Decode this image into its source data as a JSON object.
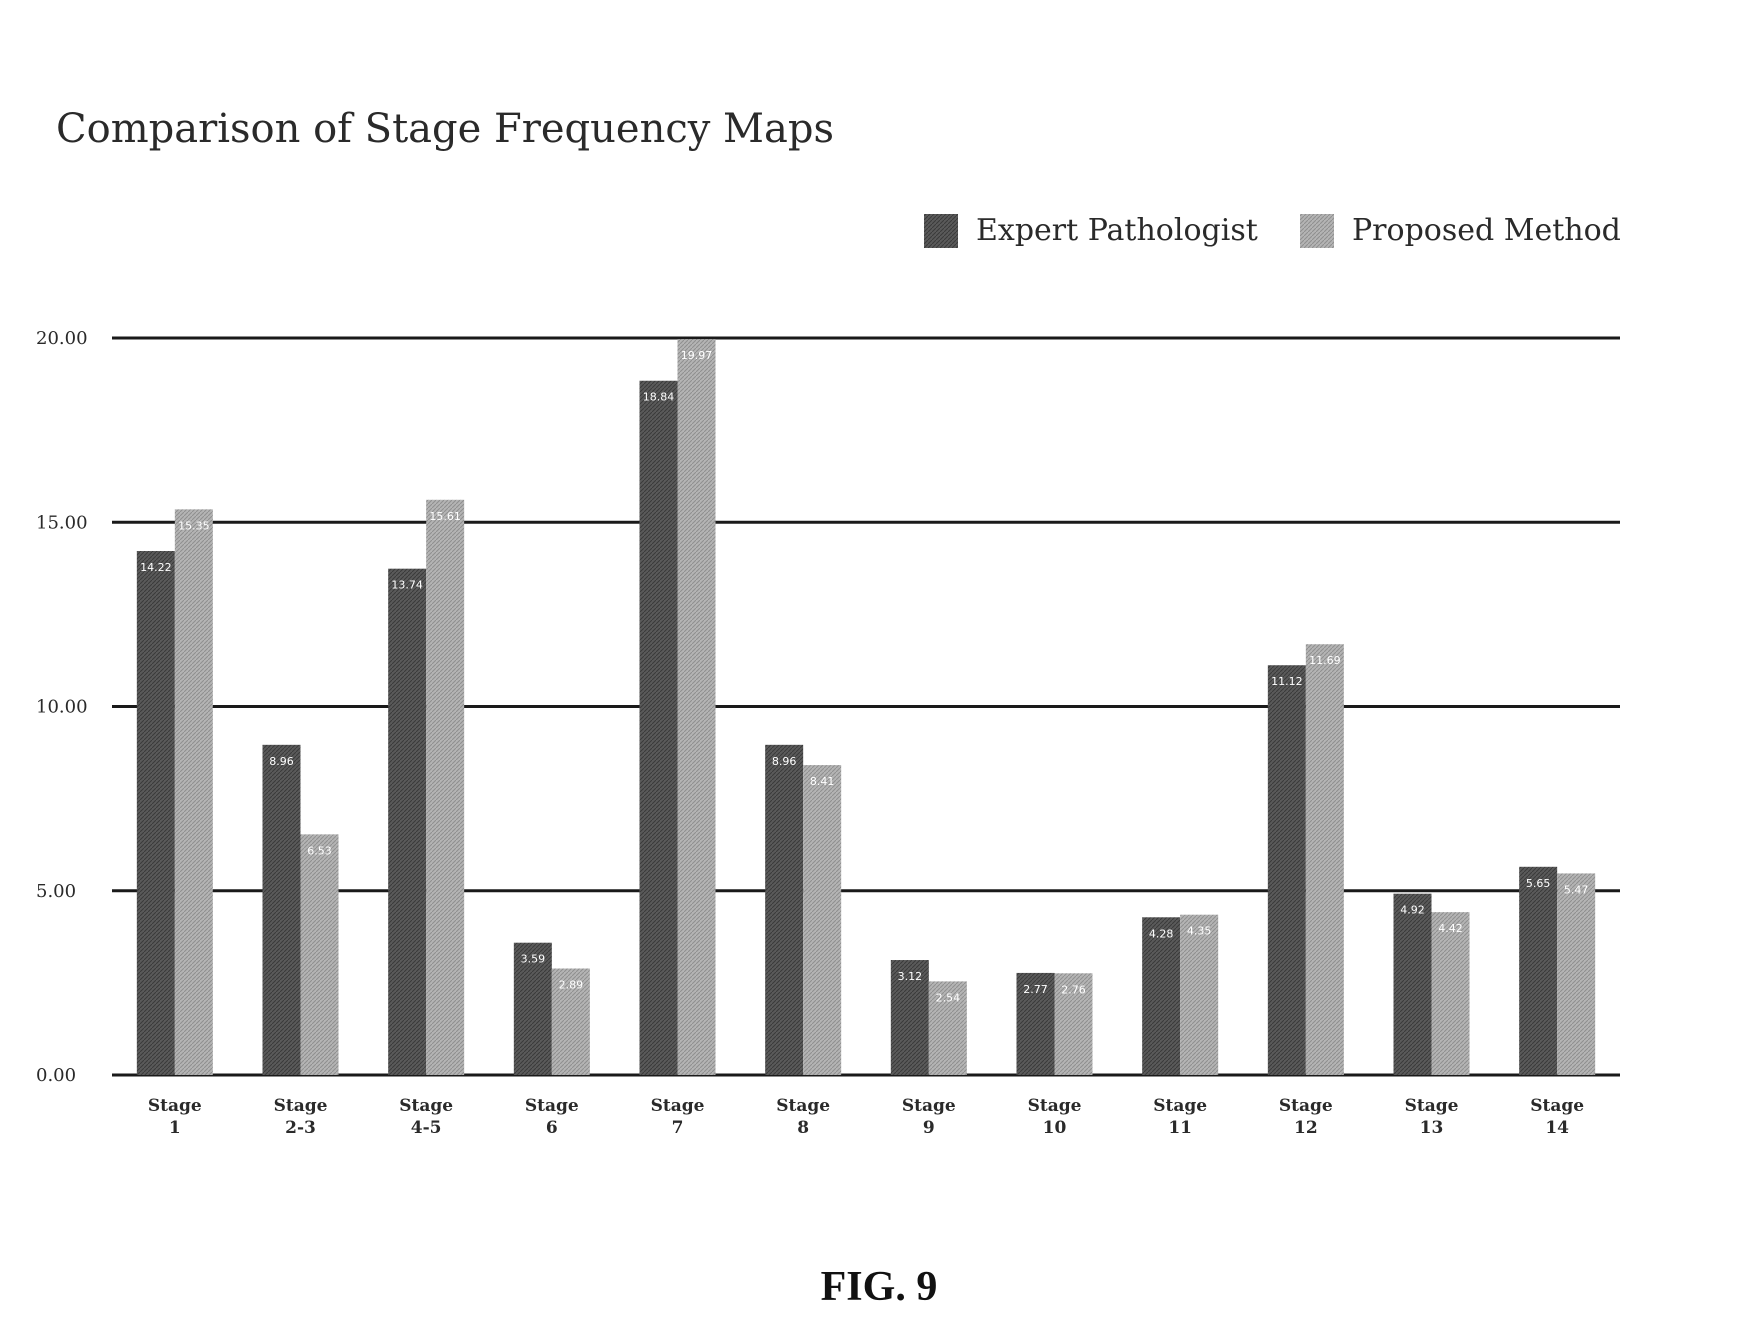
{
  "chart_data": {
    "type": "bar",
    "title": "Comparison of Stage Frequency Maps",
    "categories": [
      [
        "Stage",
        "1"
      ],
      [
        "Stage",
        "2-3"
      ],
      [
        "Stage",
        "4-5"
      ],
      [
        "Stage",
        "6"
      ],
      [
        "Stage",
        "7"
      ],
      [
        "Stage",
        "8"
      ],
      [
        "Stage",
        "9"
      ],
      [
        "Stage",
        "10"
      ],
      [
        "Stage",
        "11"
      ],
      [
        "Stage",
        "12"
      ],
      [
        "Stage",
        "13"
      ],
      [
        "Stage",
        "14"
      ]
    ],
    "series": [
      {
        "name": "Expert Pathologist",
        "color": "#555555",
        "values": [
          14.22,
          8.96,
          13.74,
          3.59,
          18.84,
          8.96,
          3.12,
          2.77,
          4.28,
          11.12,
          4.92,
          5.65
        ]
      },
      {
        "name": "Proposed Method",
        "color": "#a8a8a8",
        "values": [
          15.35,
          6.53,
          15.61,
          2.89,
          19.97,
          8.41,
          2.54,
          2.76,
          4.35,
          11.69,
          4.42,
          5.47
        ]
      }
    ],
    "y_ticks": [
      "0.00",
      "5.00",
      "10.00",
      "15.00",
      "20.00"
    ],
    "ylim": [
      0,
      20
    ],
    "grid": true,
    "legend_position": "top-right"
  },
  "figure": {
    "caption": "FIG. 9"
  }
}
